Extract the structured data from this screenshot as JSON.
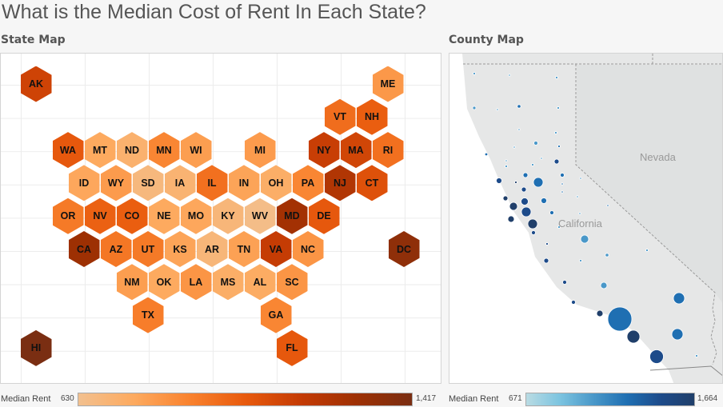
{
  "title": "What is the Median Cost of Rent In Each State?",
  "state_map": {
    "label": "State Map"
  },
  "county_map": {
    "label": "County Map",
    "region_labels": [
      "Nevada",
      "California"
    ]
  },
  "chart_data": [
    {
      "type": "heatmap",
      "title": "State Map",
      "legend": {
        "label": "Median Rent",
        "min": 630,
        "max": 1417,
        "min_label": "630",
        "max_label": "1,417",
        "colors": [
          "#f2c08f",
          "#fdaa5f",
          "#f9822e",
          "#e85a0d",
          "#c43b04",
          "#9e3003",
          "#7a2e12"
        ]
      },
      "states": [
        {
          "abbr": "AK",
          "value": 1120
        },
        {
          "abbr": "ME",
          "value": 820
        },
        {
          "abbr": "VT",
          "value": 960
        },
        {
          "abbr": "NH",
          "value": 1010
        },
        {
          "abbr": "WA",
          "value": 1030
        },
        {
          "abbr": "MT",
          "value": 760
        },
        {
          "abbr": "ND",
          "value": 720
        },
        {
          "abbr": "MN",
          "value": 880
        },
        {
          "abbr": "WI",
          "value": 800
        },
        {
          "abbr": "MI",
          "value": 810
        },
        {
          "abbr": "NY",
          "value": 1140
        },
        {
          "abbr": "MA",
          "value": 1110
        },
        {
          "abbr": "RI",
          "value": 950
        },
        {
          "abbr": "ID",
          "value": 770
        },
        {
          "abbr": "WY",
          "value": 810
        },
        {
          "abbr": "SD",
          "value": 680
        },
        {
          "abbr": "IA",
          "value": 710
        },
        {
          "abbr": "IL",
          "value": 950
        },
        {
          "abbr": "IN",
          "value": 780
        },
        {
          "abbr": "OH",
          "value": 740
        },
        {
          "abbr": "PA",
          "value": 880
        },
        {
          "abbr": "NJ",
          "value": 1220
        },
        {
          "abbr": "CT",
          "value": 1060
        },
        {
          "abbr": "OR",
          "value": 920
        },
        {
          "abbr": "NV",
          "value": 1000
        },
        {
          "abbr": "CO",
          "value": 1010
        },
        {
          "abbr": "NE",
          "value": 760
        },
        {
          "abbr": "MO",
          "value": 770
        },
        {
          "abbr": "KY",
          "value": 690
        },
        {
          "abbr": "WV",
          "value": 650
        },
        {
          "abbr": "MD",
          "value": 1270
        },
        {
          "abbr": "DE",
          "value": 1030
        },
        {
          "abbr": "CA",
          "value": 1290
        },
        {
          "abbr": "AZ",
          "value": 930
        },
        {
          "abbr": "UT",
          "value": 920
        },
        {
          "abbr": "KS",
          "value": 780
        },
        {
          "abbr": "AR",
          "value": 690
        },
        {
          "abbr": "TN",
          "value": 790
        },
        {
          "abbr": "VA",
          "value": 1150
        },
        {
          "abbr": "NC",
          "value": 830
        },
        {
          "abbr": "DC",
          "value": 1340
        },
        {
          "abbr": "NM",
          "value": 800
        },
        {
          "abbr": "OK",
          "value": 760
        },
        {
          "abbr": "LA",
          "value": 830
        },
        {
          "abbr": "MS",
          "value": 740
        },
        {
          "abbr": "AL",
          "value": 750
        },
        {
          "abbr": "SC",
          "value": 830
        },
        {
          "abbr": "TX",
          "value": 910
        },
        {
          "abbr": "GA",
          "value": 880
        },
        {
          "abbr": "HI",
          "value": 1417
        },
        {
          "abbr": "FL",
          "value": 1030
        }
      ]
    },
    {
      "type": "scatter",
      "title": "County Map",
      "legend": {
        "label": "Median Rent",
        "min": 671,
        "max": 1664,
        "min_label": "671",
        "max_label": "1,664",
        "colors": [
          "#b9dbe3",
          "#7cc4e0",
          "#4a98c9",
          "#1f6fb2",
          "#1d4b8a",
          "#203f6a"
        ]
      }
    }
  ]
}
